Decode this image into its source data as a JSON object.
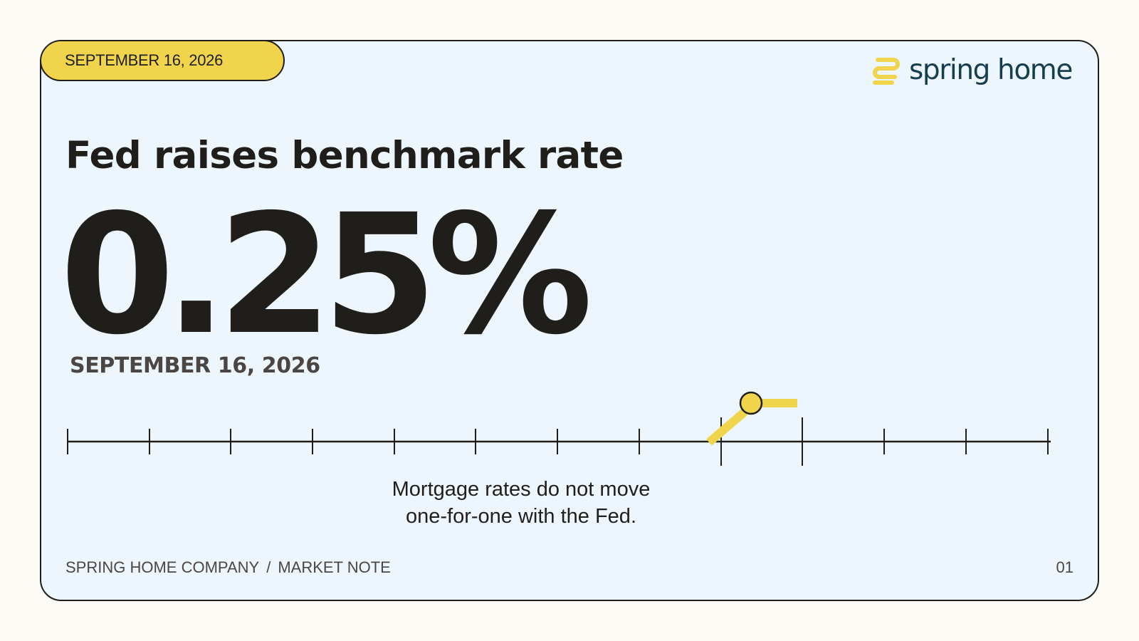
{
  "badge": {
    "date": "SEPTEMBER 16, 2026"
  },
  "brand": {
    "name": "spring home",
    "logo_icon": "spring-coil-icon",
    "logo_color": "#efd44c",
    "text_color": "#163e4e"
  },
  "headline": "Fed raises benchmark rate",
  "rate": "0.25%",
  "date": "SEPTEMBER 16, 2026",
  "caption": {
    "line1": "Mortgage rates do not move",
    "line2": "one-for-one with the Fed."
  },
  "footer": {
    "company": "SPRING HOME COMPANY",
    "separator": "/",
    "section": "MARKET NOTE",
    "page": "01"
  },
  "colors": {
    "accent": "#efd44c",
    "ink": "#201e1b",
    "card_background": "#eef6fd",
    "page_background": "#fbfaf4"
  }
}
